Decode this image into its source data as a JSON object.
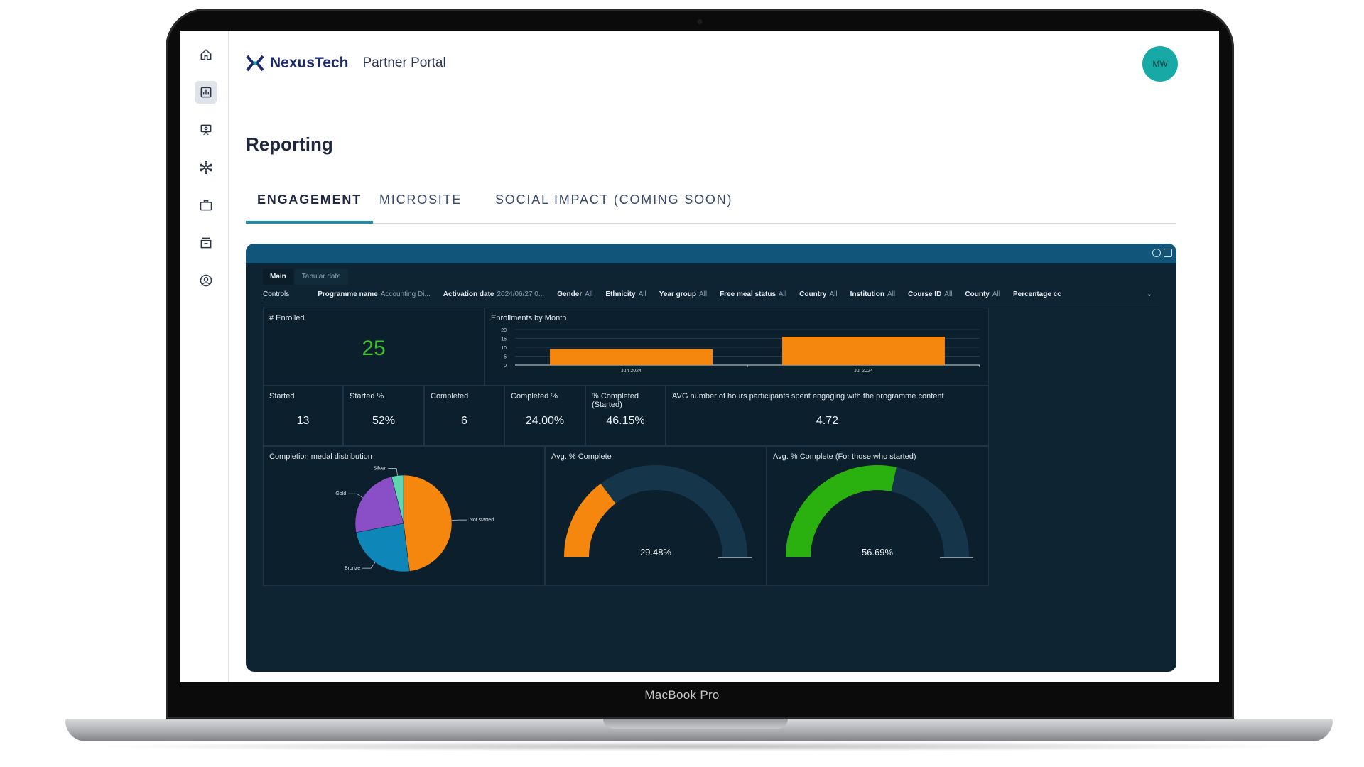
{
  "device": {
    "label": "MacBook Pro"
  },
  "sidebar": {
    "items": [
      {
        "name": "home",
        "icon": "home-icon",
        "active": false
      },
      {
        "name": "reporting",
        "icon": "report-icon",
        "active": true
      },
      {
        "name": "presentation",
        "icon": "presentation-icon",
        "active": false
      },
      {
        "name": "network",
        "icon": "network-icon",
        "active": false
      },
      {
        "name": "jobs",
        "icon": "briefcase-icon",
        "active": false
      },
      {
        "name": "archive",
        "icon": "archive-icon",
        "active": false
      },
      {
        "name": "profile",
        "icon": "user-circle-icon",
        "active": false
      }
    ]
  },
  "header": {
    "logo": "NexusTech",
    "portal": "Partner Portal",
    "avatar_initials": "MW"
  },
  "page": {
    "title": "Reporting"
  },
  "tabs": [
    {
      "label": "ENGAGEMENT",
      "active": true
    },
    {
      "label": "MICROSITE",
      "active": false
    },
    {
      "label": "SOCIAL IMPACT (COMING SOON)",
      "active": false
    }
  ],
  "dashboard": {
    "sheet_tabs": [
      "Main",
      "Tabular data"
    ],
    "controls_label": "Controls",
    "controls": [
      {
        "label": "Programme name",
        "value": "Accounting Di..."
      },
      {
        "label": "Activation date",
        "value": "2024/06/27 0..."
      },
      {
        "label": "Gender",
        "value": "All"
      },
      {
        "label": "Ethnicity",
        "value": "All"
      },
      {
        "label": "Year group",
        "value": "All"
      },
      {
        "label": "Free meal status",
        "value": "All"
      },
      {
        "label": "Country",
        "value": "All"
      },
      {
        "label": "Institution",
        "value": "All"
      },
      {
        "label": "Course ID",
        "value": "All"
      },
      {
        "label": "County",
        "value": "All"
      },
      {
        "label": "Percentage cc",
        "value": ""
      }
    ],
    "enrolled": {
      "title": "# Enrolled",
      "value": "25"
    },
    "kpis": [
      {
        "title": "Started",
        "value": "13"
      },
      {
        "title": "Started %",
        "value": "52%"
      },
      {
        "title": "Completed",
        "value": "6"
      },
      {
        "title": "Completed %",
        "value": "24.00%"
      },
      {
        "title": "% Completed (Started)",
        "value": "46.15%"
      },
      {
        "title": "AVG number of hours participants spent engaging with the programme content",
        "value": "4.72"
      }
    ],
    "medal_title": "Completion medal distribution",
    "gauge1": {
      "title": "Avg. % Complete",
      "label": "29.48%",
      "value": 29.48,
      "color": "#f5870f"
    },
    "gauge2": {
      "title": "Avg. % Complete (For those who started)",
      "label": "56.69%",
      "value": 56.69,
      "color": "#2bb10f"
    }
  },
  "chart_data": [
    {
      "type": "bar",
      "title": "Enrollments by Month",
      "categories": [
        "Jun 2024",
        "Jul 2024"
      ],
      "values": [
        9,
        16
      ],
      "ylim": [
        0,
        20
      ],
      "yticks": [
        0,
        5,
        10,
        15,
        20
      ],
      "color": "#f5870f"
    },
    {
      "type": "pie",
      "title": "Completion medal distribution",
      "labels": [
        "Not started",
        "Bronze",
        "Gold",
        "Silver"
      ],
      "values": [
        48,
        24,
        24,
        4
      ],
      "colors": [
        "#f5870f",
        "#0f86b8",
        "#8a4fc6",
        "#5fd6b0"
      ]
    }
  ],
  "colors": {
    "accent": "#1a8fae",
    "dashboard_bg": "#0e2433",
    "avatar": "#17a9a6",
    "brand": "#1d2a6b"
  }
}
